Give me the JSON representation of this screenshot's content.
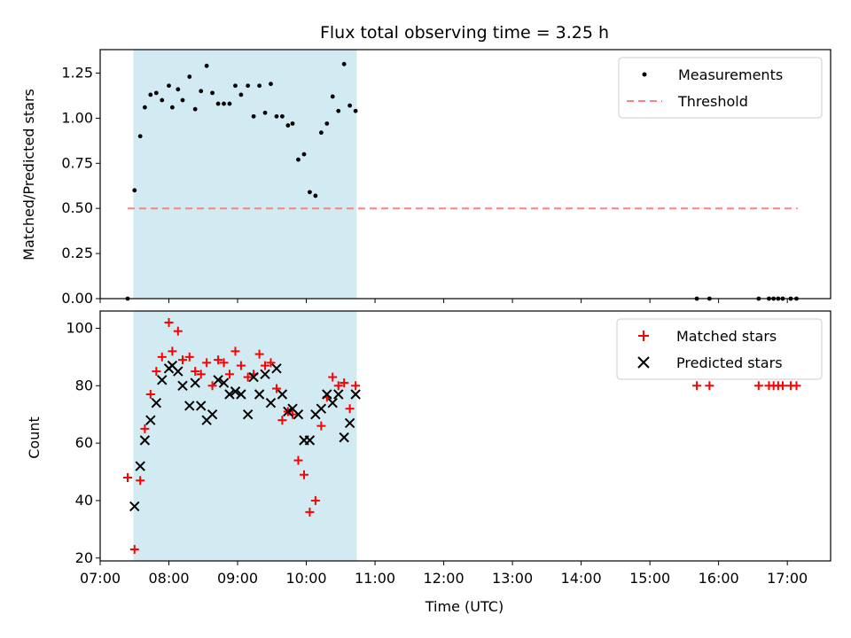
{
  "chart_data": [
    {
      "type": "scatter",
      "title": "Flux total observing time = 3.25 h",
      "xlabel": "",
      "ylabel": "Matched/Predicted stars",
      "ylim": [
        0.0,
        1.38
      ],
      "yticks": [
        0.0,
        0.25,
        0.5,
        0.75,
        1.0,
        1.25
      ],
      "ytick_labels": [
        "0.00",
        "0.25",
        "0.50",
        "0.75",
        "1.00",
        "1.25"
      ],
      "xlim_hours": [
        7.0,
        17.63
      ],
      "shaded_interval_hours": [
        7.483,
        10.733
      ],
      "threshold": {
        "name": "Threshold",
        "value": 0.5,
        "x_range_hours": [
          7.4,
          17.15
        ]
      },
      "legend_position": "top-right",
      "series": [
        {
          "name": "Measurements",
          "x_hours": [
            7.4,
            7.5,
            7.583,
            7.65,
            7.733,
            7.817,
            7.9,
            8.0,
            8.05,
            8.133,
            8.2,
            8.3,
            8.383,
            8.467,
            8.55,
            8.633,
            8.717,
            8.8,
            8.883,
            8.967,
            9.05,
            9.15,
            9.233,
            9.317,
            9.4,
            9.483,
            9.567,
            9.65,
            9.733,
            9.8,
            9.883,
            9.967,
            10.05,
            10.133,
            10.217,
            10.3,
            10.383,
            10.467,
            10.55,
            10.633,
            10.717,
            15.683,
            15.867,
            16.583,
            16.733,
            16.8,
            16.867,
            16.933,
            17.05,
            17.133
          ],
          "values": [
            0.0,
            0.6,
            0.9,
            1.06,
            1.13,
            1.14,
            1.1,
            1.18,
            1.06,
            1.16,
            1.1,
            1.23,
            1.05,
            1.15,
            1.29,
            1.14,
            1.08,
            1.08,
            1.08,
            1.18,
            1.13,
            1.18,
            1.01,
            1.18,
            1.03,
            1.19,
            1.01,
            1.01,
            0.96,
            0.97,
            0.77,
            0.8,
            0.59,
            0.57,
            0.92,
            0.97,
            1.12,
            1.04,
            1.3,
            1.07,
            1.04,
            0.0,
            0.0,
            0.0,
            0.0,
            0.0,
            0.0,
            0.0,
            0.0,
            0.0
          ]
        }
      ]
    },
    {
      "type": "scatter",
      "title": "",
      "xlabel": "Time (UTC)",
      "ylabel": "Count",
      "ylim": [
        19,
        106
      ],
      "yticks": [
        20,
        40,
        60,
        80,
        100
      ],
      "ytick_labels": [
        "20",
        "40",
        "60",
        "80",
        "100"
      ],
      "xlim_hours": [
        7.0,
        17.63
      ],
      "xticks_hours": [
        7,
        8,
        9,
        10,
        11,
        12,
        13,
        14,
        15,
        16,
        17
      ],
      "xtick_labels": [
        "07:00",
        "08:00",
        "09:00",
        "10:00",
        "11:00",
        "12:00",
        "13:00",
        "14:00",
        "15:00",
        "16:00",
        "17:00"
      ],
      "shaded_interval_hours": [
        7.483,
        10.733
      ],
      "legend_position": "top-right",
      "series": [
        {
          "name": "Matched stars",
          "x_hours": [
            7.4,
            7.5,
            7.583,
            7.65,
            7.733,
            7.817,
            7.9,
            8.0,
            8.05,
            8.133,
            8.2,
            8.3,
            8.383,
            8.467,
            8.55,
            8.633,
            8.717,
            8.8,
            8.883,
            8.967,
            9.05,
            9.15,
            9.233,
            9.317,
            9.4,
            9.483,
            9.567,
            9.65,
            9.733,
            9.8,
            9.883,
            9.967,
            10.05,
            10.133,
            10.217,
            10.3,
            10.383,
            10.467,
            10.55,
            10.633,
            10.717,
            15.683,
            15.867,
            16.583,
            16.733,
            16.8,
            16.867,
            16.933,
            17.05,
            17.133
          ],
          "values": [
            48,
            23,
            47,
            65,
            77,
            85,
            90,
            102,
            92,
            99,
            89,
            90,
            85,
            84,
            88,
            80,
            89,
            88,
            84,
            92,
            87,
            83,
            84,
            91,
            87,
            88,
            79,
            68,
            71,
            70,
            54,
            49,
            36,
            40,
            66,
            76,
            83,
            80,
            81,
            72,
            80,
            80,
            80,
            80,
            80,
            80,
            80,
            80,
            80,
            80
          ]
        },
        {
          "name": "Predicted stars",
          "x_hours": [
            7.5,
            7.583,
            7.65,
            7.733,
            7.817,
            7.9,
            8.0,
            8.05,
            8.133,
            8.2,
            8.3,
            8.383,
            8.467,
            8.55,
            8.633,
            8.717,
            8.8,
            8.883,
            8.967,
            9.05,
            9.15,
            9.233,
            9.317,
            9.4,
            9.483,
            9.567,
            9.65,
            9.733,
            9.8,
            9.883,
            9.967,
            10.05,
            10.133,
            10.217,
            10.3,
            10.383,
            10.467,
            10.55,
            10.633,
            10.717
          ],
          "values": [
            38,
            52,
            61,
            68,
            74,
            82,
            86,
            87,
            85,
            80,
            73,
            81,
            73,
            68,
            70,
            82,
            81,
            77,
            78,
            77,
            70,
            83,
            77,
            84,
            74,
            86,
            77,
            71,
            72,
            70,
            61,
            61,
            70,
            72,
            77,
            74,
            77,
            62,
            67,
            77
          ]
        }
      ]
    }
  ],
  "colors": {
    "measurement": "#000000",
    "threshold": "#ff8080",
    "matched": "#ff0000",
    "predicted": "#000000",
    "shade": "#add8e6"
  }
}
